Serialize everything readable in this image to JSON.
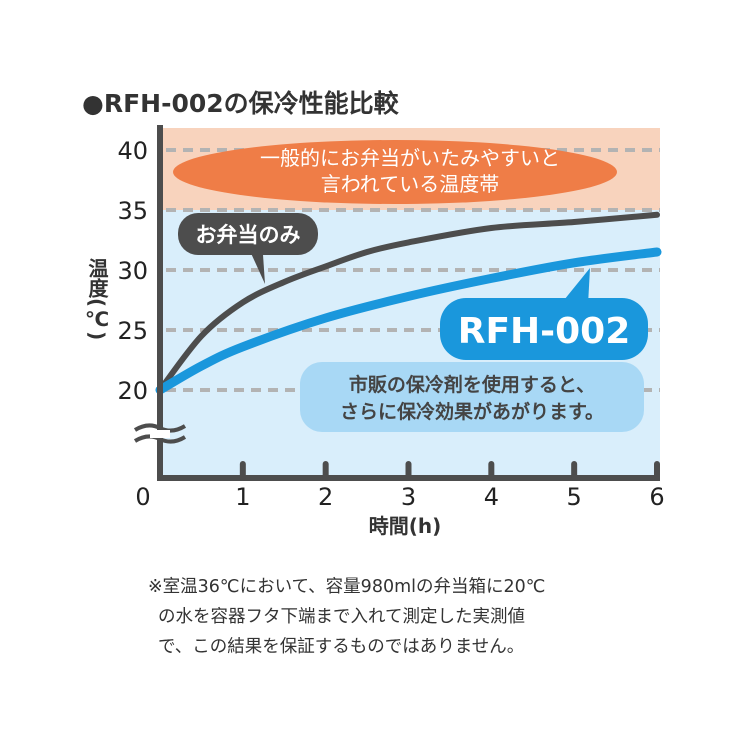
{
  "chart_data": {
    "type": "line",
    "title": "●RFH-002の保冷性能比較",
    "xlabel": "時間(h)",
    "ylabel": "温度(℃)",
    "xlim": [
      0,
      6
    ],
    "ylim_visible": [
      20,
      40
    ],
    "axis_break": true,
    "x_ticks": [
      "0",
      "1",
      "2",
      "3",
      "4",
      "5",
      "6"
    ],
    "y_ticks": [
      "20",
      "25",
      "30",
      "35",
      "40"
    ],
    "grid": "horizontal dashed",
    "danger_band": {
      "from": 35,
      "to": 40,
      "label_lines": [
        "一般的にお弁当がいたみやすいと",
        "言われている温度帯"
      ],
      "color": "#f8d3bd",
      "label_color": "#ef7d47"
    },
    "series": [
      {
        "name": "お弁当のみ",
        "color": "#4d4d4d",
        "x": [
          0,
          0.5,
          1,
          1.5,
          2,
          2.5,
          3,
          4,
          5,
          6
        ],
        "y": [
          20,
          24.5,
          27.3,
          29,
          30.3,
          31.5,
          32.3,
          33.5,
          34,
          34.6
        ]
      },
      {
        "name": "RFH-002",
        "color": "#1a97dc",
        "x": [
          0,
          0.5,
          1,
          2,
          3,
          4,
          5,
          6
        ],
        "y": [
          20,
          22,
          23.6,
          26,
          27.8,
          29.3,
          30.6,
          31.5
        ]
      }
    ],
    "annotations": [
      {
        "lines": [
          "市販の保冷剤を使用すると、",
          "さらに保冷効果があがります。"
        ],
        "color": "#a8d8f5"
      }
    ],
    "colors": {
      "plot_bg": "#d9eefb",
      "axis": "#4d4d4d",
      "grid": "#b3b3b3"
    }
  },
  "footnote": [
    "※室温36℃において、容量980mlの弁当箱に20℃",
    "の水を容器フタ下端まで入れて測定した実測値",
    "で、この結果を保証するものではありません。"
  ]
}
